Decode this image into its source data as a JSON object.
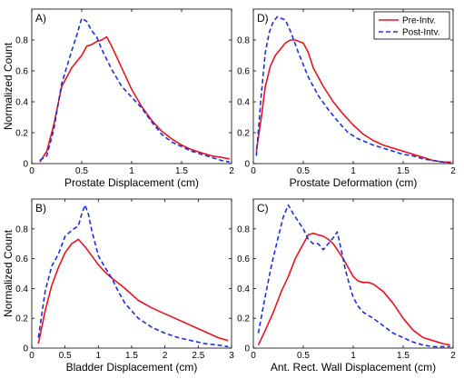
{
  "chart_data": [
    {
      "type": "line",
      "panel_label": "A)",
      "xlabel": "Prostate Displacement (cm)",
      "ylabel": "Normalized Count",
      "xlim": [
        0,
        2
      ],
      "ylim": [
        0,
        1
      ],
      "xticks": [
        "0",
        "0.5",
        "1",
        "1.5",
        "2"
      ],
      "yticks": [
        "0",
        "0.2",
        "0.4",
        "0.6",
        "0.8"
      ],
      "series": [
        {
          "name": "Pre-Intv.",
          "color": "#e8131e",
          "dash": "solid",
          "x": [
            0.08,
            0.15,
            0.22,
            0.3,
            0.4,
            0.5,
            0.55,
            0.6,
            0.65,
            0.7,
            0.75,
            0.8,
            0.9,
            1.0,
            1.1,
            1.2,
            1.3,
            1.4,
            1.5,
            1.6,
            1.7,
            1.8,
            1.9,
            1.98
          ],
          "y": [
            0.01,
            0.08,
            0.25,
            0.5,
            0.62,
            0.7,
            0.76,
            0.77,
            0.79,
            0.8,
            0.82,
            0.76,
            0.62,
            0.48,
            0.37,
            0.28,
            0.21,
            0.16,
            0.12,
            0.09,
            0.07,
            0.05,
            0.04,
            0.03
          ]
        },
        {
          "name": "Post-Intv.",
          "color": "#1c2fe0",
          "dash": "dashed",
          "x": [
            0.08,
            0.15,
            0.22,
            0.3,
            0.4,
            0.45,
            0.5,
            0.55,
            0.6,
            0.65,
            0.7,
            0.8,
            0.9,
            1.0,
            1.1,
            1.2,
            1.3,
            1.4,
            1.5,
            1.6,
            1.7,
            1.8,
            1.9,
            1.98
          ],
          "y": [
            0.02,
            0.05,
            0.22,
            0.52,
            0.73,
            0.83,
            0.94,
            0.92,
            0.86,
            0.82,
            0.74,
            0.61,
            0.5,
            0.43,
            0.36,
            0.27,
            0.19,
            0.14,
            0.11,
            0.08,
            0.06,
            0.04,
            0.02,
            0.01
          ]
        }
      ]
    },
    {
      "type": "line",
      "panel_label": "D)",
      "xlabel": "Prostate Deformation (cm)",
      "ylabel": "",
      "xlim": [
        0,
        2
      ],
      "ylim": [
        0,
        1
      ],
      "xticks": [
        "0",
        "0.5",
        "1",
        "1.5",
        "2"
      ],
      "yticks": [
        "0",
        "0.2",
        "0.4",
        "0.6",
        "0.8"
      ],
      "series": [
        {
          "name": "Pre-Intv.",
          "color": "#e8131e",
          "dash": "solid",
          "x": [
            0.03,
            0.08,
            0.12,
            0.17,
            0.22,
            0.27,
            0.32,
            0.37,
            0.42,
            0.5,
            0.55,
            0.6,
            0.7,
            0.8,
            0.9,
            1.0,
            1.1,
            1.2,
            1.3,
            1.4,
            1.5,
            1.6,
            1.7,
            1.8,
            1.9,
            1.98
          ],
          "y": [
            0.08,
            0.3,
            0.5,
            0.63,
            0.7,
            0.74,
            0.78,
            0.8,
            0.8,
            0.78,
            0.72,
            0.62,
            0.5,
            0.4,
            0.32,
            0.25,
            0.19,
            0.15,
            0.12,
            0.1,
            0.08,
            0.06,
            0.04,
            0.02,
            0.01,
            0.01
          ]
        },
        {
          "name": "Post-Intv.",
          "color": "#1c2fe0",
          "dash": "dashed",
          "x": [
            0.03,
            0.08,
            0.12,
            0.16,
            0.2,
            0.24,
            0.28,
            0.32,
            0.37,
            0.45,
            0.55,
            0.65,
            0.75,
            0.85,
            0.95,
            1.05,
            1.2,
            1.3,
            1.4,
            1.5,
            1.6,
            1.7,
            1.8,
            1.9,
            1.98
          ],
          "y": [
            0.05,
            0.45,
            0.72,
            0.85,
            0.92,
            0.95,
            0.94,
            0.93,
            0.86,
            0.72,
            0.56,
            0.44,
            0.35,
            0.27,
            0.2,
            0.16,
            0.12,
            0.1,
            0.08,
            0.06,
            0.05,
            0.03,
            0.02,
            0.01,
            0.0
          ]
        }
      ]
    },
    {
      "type": "line",
      "panel_label": "B)",
      "xlabel": "Bladder Displacement (cm)",
      "ylabel": "Normalized Count",
      "xlim": [
        0,
        3
      ],
      "ylim": [
        0,
        1
      ],
      "xticks": [
        "0",
        "0.5",
        "1",
        "1.5",
        "2",
        "2.5",
        "3"
      ],
      "yticks": [
        "0",
        "0.2",
        "0.4",
        "0.6",
        "0.8"
      ],
      "series": [
        {
          "name": "Pre-Intv.",
          "color": "#e8131e",
          "dash": "solid",
          "x": [
            0.1,
            0.2,
            0.3,
            0.4,
            0.5,
            0.6,
            0.7,
            0.8,
            0.9,
            1.0,
            1.1,
            1.2,
            1.4,
            1.6,
            1.8,
            2.0,
            2.2,
            2.4,
            2.6,
            2.8,
            2.95
          ],
          "y": [
            0.03,
            0.25,
            0.42,
            0.54,
            0.64,
            0.7,
            0.73,
            0.68,
            0.62,
            0.56,
            0.51,
            0.47,
            0.4,
            0.32,
            0.27,
            0.23,
            0.19,
            0.15,
            0.11,
            0.07,
            0.05
          ]
        },
        {
          "name": "Post-Intv.",
          "color": "#1c2fe0",
          "dash": "dashed",
          "x": [
            0.1,
            0.2,
            0.3,
            0.4,
            0.5,
            0.6,
            0.7,
            0.75,
            0.8,
            0.85,
            0.9,
            1.0,
            1.1,
            1.2,
            1.3,
            1.4,
            1.5,
            1.6,
            1.8,
            2.0,
            2.2,
            2.4,
            2.6,
            2.8,
            2.95
          ],
          "y": [
            0.07,
            0.38,
            0.55,
            0.63,
            0.75,
            0.79,
            0.82,
            0.9,
            0.96,
            0.9,
            0.79,
            0.62,
            0.54,
            0.47,
            0.38,
            0.3,
            0.25,
            0.2,
            0.14,
            0.1,
            0.07,
            0.05,
            0.03,
            0.02,
            0.01
          ]
        }
      ]
    },
    {
      "type": "line",
      "panel_label": "C)",
      "xlabel": "Ant. Rect. Wall Displacement (cm)",
      "ylabel": "",
      "xlim": [
        0,
        2
      ],
      "ylim": [
        0,
        1
      ],
      "xticks": [
        "0",
        "0.5",
        "1",
        "1.5",
        "2"
      ],
      "yticks": [
        "0",
        "0.2",
        "0.4",
        "0.6",
        "0.8"
      ],
      "series": [
        {
          "name": "Pre-Intv.",
          "color": "#e8131e",
          "dash": "solid",
          "x": [
            0.05,
            0.12,
            0.2,
            0.28,
            0.35,
            0.42,
            0.5,
            0.55,
            0.6,
            0.65,
            0.7,
            0.75,
            0.8,
            0.85,
            0.9,
            0.95,
            1.0,
            1.05,
            1.1,
            1.15,
            1.2,
            1.3,
            1.4,
            1.5,
            1.6,
            1.7,
            1.8,
            1.9,
            1.97
          ],
          "y": [
            0.02,
            0.12,
            0.24,
            0.38,
            0.48,
            0.6,
            0.7,
            0.76,
            0.77,
            0.76,
            0.75,
            0.73,
            0.7,
            0.65,
            0.6,
            0.54,
            0.48,
            0.45,
            0.44,
            0.44,
            0.43,
            0.38,
            0.3,
            0.2,
            0.12,
            0.07,
            0.05,
            0.03,
            0.02
          ]
        },
        {
          "name": "Post-Intv.",
          "color": "#1c2fe0",
          "dash": "dashed",
          "x": [
            0.05,
            0.12,
            0.18,
            0.24,
            0.3,
            0.35,
            0.4,
            0.45,
            0.5,
            0.55,
            0.6,
            0.65,
            0.7,
            0.75,
            0.8,
            0.84,
            0.88,
            0.92,
            0.96,
            1.0,
            1.05,
            1.1,
            1.2,
            1.3,
            1.4,
            1.5,
            1.6,
            1.7,
            1.8,
            1.9,
            1.97
          ],
          "y": [
            0.1,
            0.35,
            0.55,
            0.72,
            0.88,
            0.96,
            0.9,
            0.85,
            0.8,
            0.73,
            0.7,
            0.7,
            0.66,
            0.7,
            0.74,
            0.78,
            0.66,
            0.53,
            0.43,
            0.34,
            0.28,
            0.24,
            0.2,
            0.15,
            0.1,
            0.07,
            0.04,
            0.02,
            0.01,
            0.01,
            0.01
          ]
        }
      ]
    }
  ],
  "legend": {
    "placement": "top-right",
    "items": [
      {
        "label": "Pre-Intv.",
        "color": "#e8131e",
        "dash": "solid"
      },
      {
        "label": "Post-Intv.",
        "color": "#1c2fe0",
        "dash": "dashed"
      }
    ]
  }
}
